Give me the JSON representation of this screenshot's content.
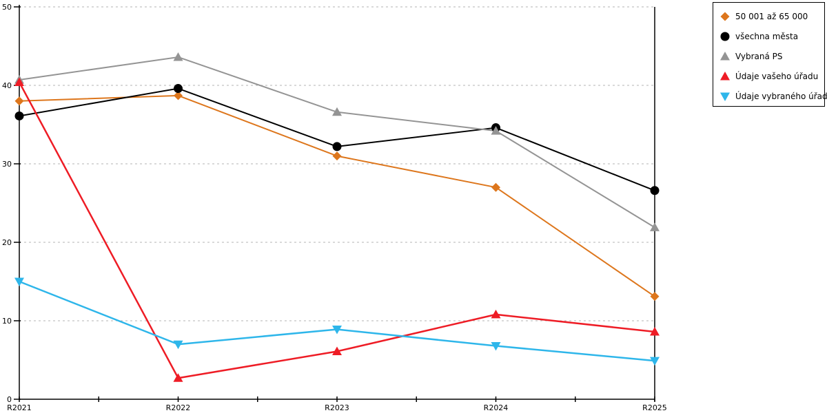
{
  "chart_data": {
    "type": "line",
    "title": "",
    "xlabel": "",
    "ylabel": "",
    "categories": [
      "R2021",
      "R2022",
      "R2023",
      "R2024",
      "R2025"
    ],
    "y_ticks": [
      0,
      10,
      20,
      30,
      40,
      50
    ],
    "ylim": [
      0,
      50
    ],
    "grid": "horizontal dashed gridlines",
    "gridline_color": "#b3b3b3",
    "axis_color": "#000000",
    "legend_position": "outside top-right",
    "series": [
      {
        "name": "50 001 až 65 000",
        "marker": "diamond",
        "color": "#dd761c",
        "line_width": 2,
        "values": [
          38.0,
          38.7,
          31.0,
          27.0,
          13.1
        ]
      },
      {
        "name": "všechna města",
        "marker": "circle",
        "color": "#000000",
        "line_width": 2,
        "values": [
          36.1,
          39.6,
          32.2,
          34.6,
          26.6
        ]
      },
      {
        "name": "Vybraná PS",
        "marker": "triangle-up",
        "color": "#949494",
        "line_width": 2,
        "values": [
          40.7,
          43.6,
          36.6,
          34.2,
          21.9
        ]
      },
      {
        "name": "Údaje vašeho úřadu",
        "marker": "triangle-up",
        "color": "#ee1c25",
        "line_width": 2.5,
        "values": [
          40.4,
          2.7,
          6.1,
          10.8,
          8.6
        ]
      },
      {
        "name": "Údaje vybraného úřadu",
        "marker": "triangle-down",
        "color": "#2eb6ea",
        "line_width": 2.5,
        "values": [
          15.0,
          7.0,
          8.9,
          6.8,
          4.9
        ]
      }
    ]
  }
}
